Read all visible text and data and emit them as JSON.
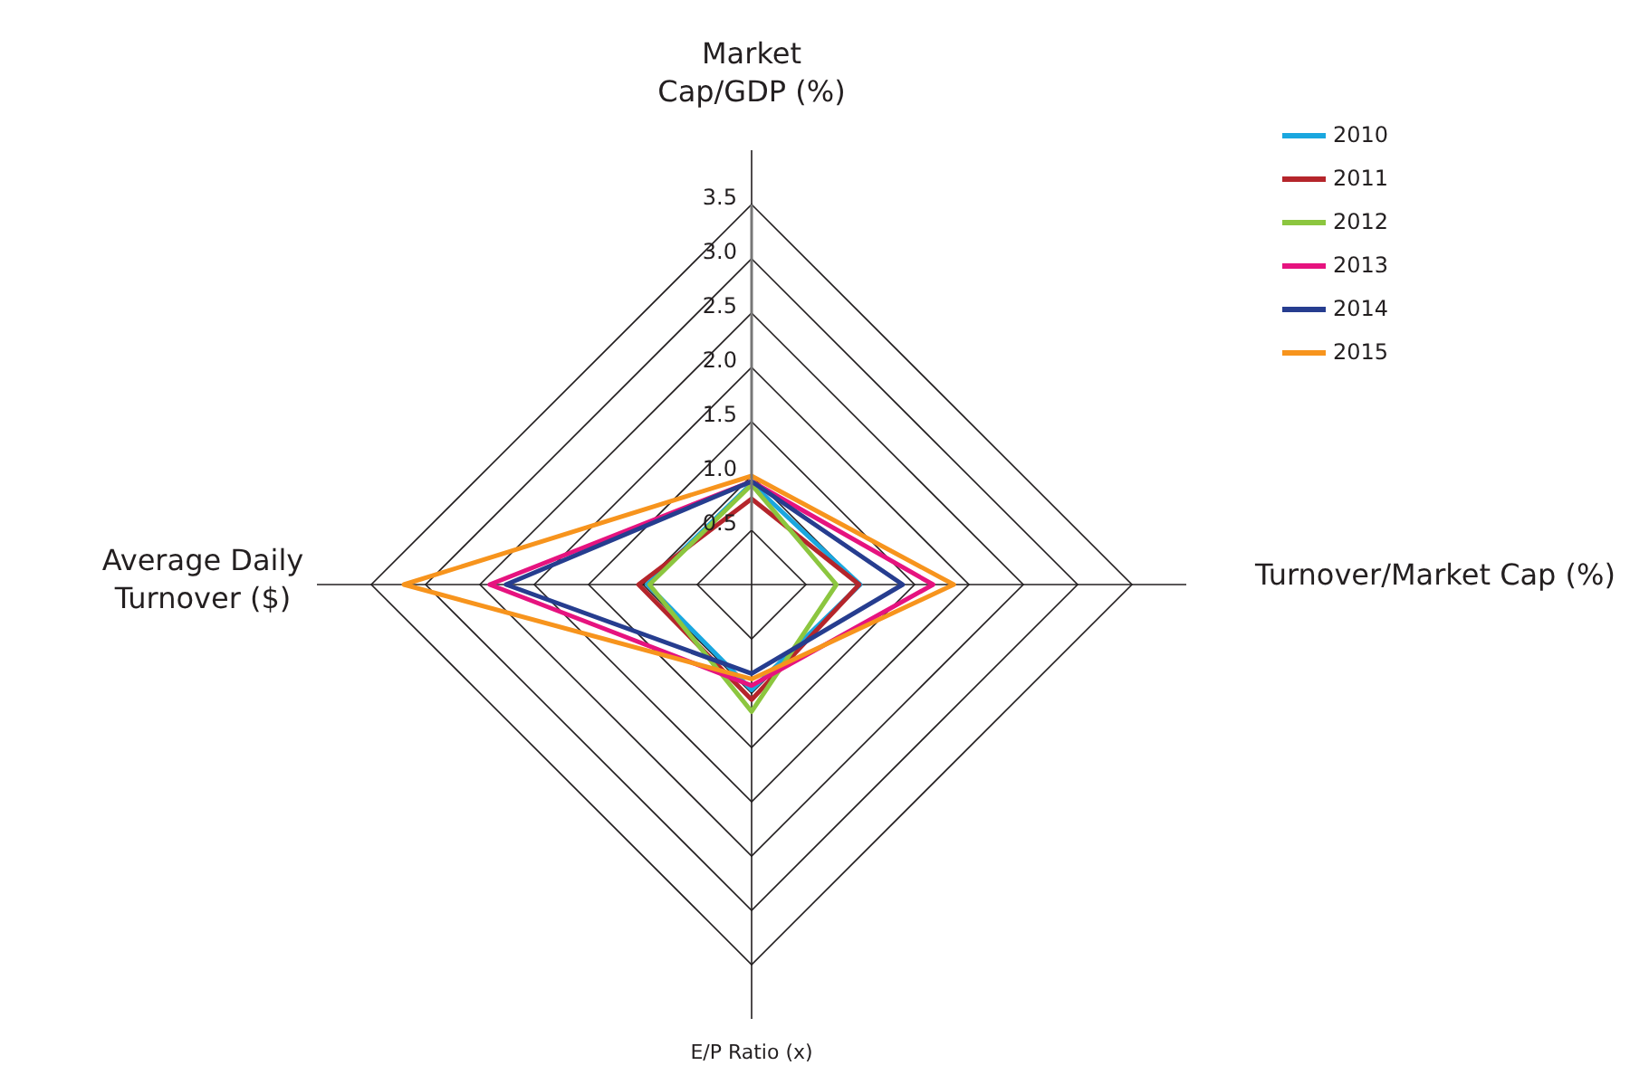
{
  "chart_data": {
    "type": "radar",
    "categories": [
      "Market Cap/GDP (%)",
      "Turnover/Market Cap (%)",
      "E/P Ratio (x)",
      "Average Daily Turnover ($)"
    ],
    "series": [
      {
        "name": "2010",
        "color": "#1aa7df",
        "values": [
          0.93,
          1.0,
          0.97,
          0.96
        ]
      },
      {
        "name": "2011",
        "color": "#b5252b",
        "values": [
          0.79,
          0.99,
          1.06,
          1.04
        ]
      },
      {
        "name": "2012",
        "color": "#8cc63f",
        "values": [
          0.92,
          0.78,
          1.17,
          0.94
        ]
      },
      {
        "name": "2013",
        "color": "#e6137f",
        "values": [
          0.95,
          1.67,
          0.93,
          2.41
        ]
      },
      {
        "name": "2014",
        "color": "#263d8f",
        "values": [
          0.95,
          1.39,
          0.82,
          2.26
        ]
      },
      {
        "name": "2015",
        "color": "#f7941d",
        "values": [
          1.0,
          1.86,
          0.87,
          3.2
        ]
      }
    ],
    "ylim": [
      0,
      3.5
    ],
    "yticks": [
      {
        "value": 0.5,
        "label": "0.5"
      },
      {
        "value": 1,
        "label": "1.0"
      },
      {
        "value": 1.5,
        "label": "1.5"
      },
      {
        "value": 2,
        "label": "2.0"
      },
      {
        "value": 2.5,
        "label": "2.5"
      },
      {
        "value": 3,
        "label": "3.0"
      },
      {
        "value": 3.5,
        "label": "3.5"
      }
    ],
    "grid": true,
    "legend": "top right"
  }
}
